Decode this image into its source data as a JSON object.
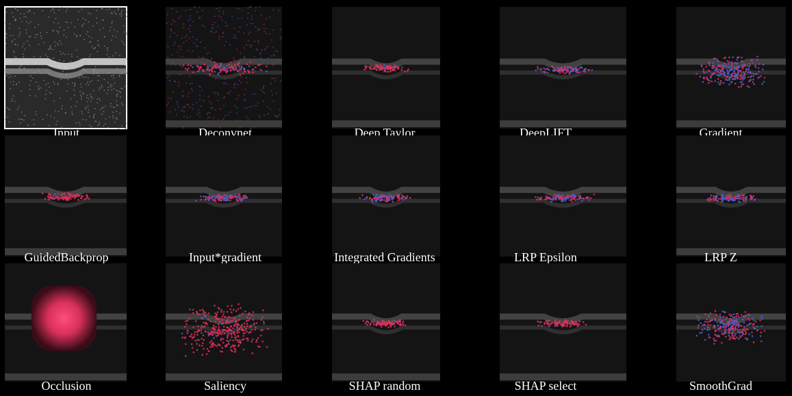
{
  "panels": [
    {
      "label": "Input"
    },
    {
      "label": "Deconvnet"
    },
    {
      "label": "Deep Taylor"
    },
    {
      "label": "DeepLIFT"
    },
    {
      "label": "Gradient"
    },
    {
      "label": "GuidedBackprop"
    },
    {
      "label": "Input*gradient"
    },
    {
      "label": "Integrated Gradients"
    },
    {
      "label": "LRP Epsilon"
    },
    {
      "label": "LRP Z"
    },
    {
      "label": "Occlusion"
    },
    {
      "label": "Saliency"
    },
    {
      "label": "SHAP random"
    },
    {
      "label": "SHAP select"
    },
    {
      "label": "SmoothGrad"
    }
  ]
}
